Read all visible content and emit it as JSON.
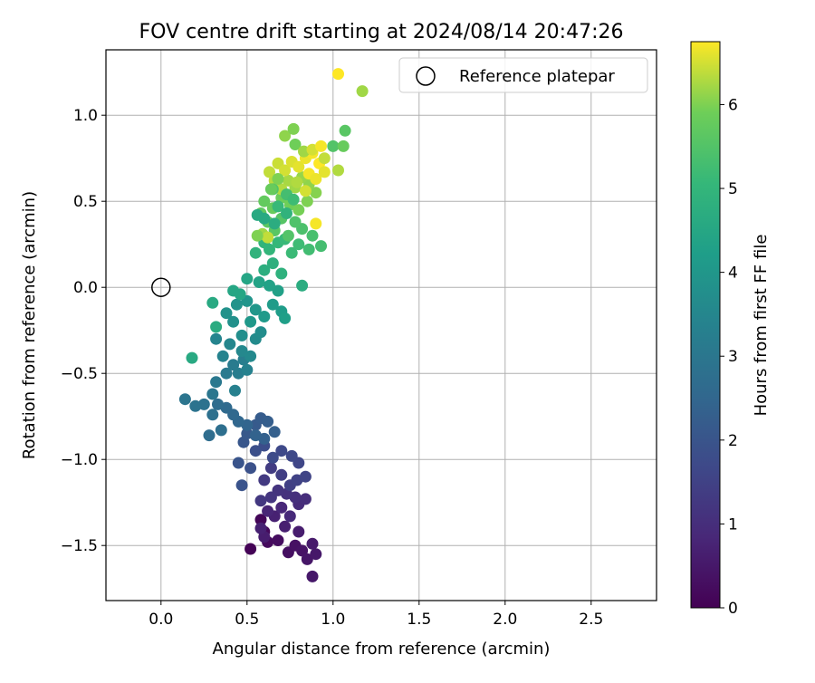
{
  "chart_data": {
    "type": "scatter",
    "title": "FOV centre drift starting at 2024/08/14 20:47:26",
    "xlabel": "Angular distance from reference (arcmin)",
    "ylabel": "Rotation from reference (arcmin)",
    "xlim": [
      -0.32,
      2.88
    ],
    "ylim": [
      -1.82,
      1.38
    ],
    "xticks": [
      0.0,
      0.5,
      1.0,
      1.5,
      2.0,
      2.5
    ],
    "xtick_labels": [
      "0.0",
      "0.5",
      "1.0",
      "1.5",
      "2.0",
      "2.5"
    ],
    "yticks": [
      -1.5,
      -1.0,
      -0.5,
      0.0,
      0.5,
      1.0
    ],
    "ytick_labels": [
      "−1.5",
      "−1.0",
      "−0.5",
      "0.0",
      "0.5",
      "1.0"
    ],
    "grid": true,
    "legend": {
      "placement": "upper right",
      "label": "Reference platepar"
    },
    "reference_point": {
      "x": 0.0,
      "y": 0.0
    },
    "colormap": "viridis",
    "colorbar": {
      "label": "Hours from first FF file",
      "range": [
        0,
        6.75
      ],
      "ticks": [
        0,
        1,
        2,
        3,
        4,
        5,
        6
      ],
      "tick_labels": [
        "0",
        "1",
        "2",
        "3",
        "4",
        "5",
        "6"
      ]
    },
    "series": [
      {
        "points": [
          [
            0.52,
            -1.52,
            0.05
          ],
          [
            0.58,
            -1.35,
            0.1
          ],
          [
            0.6,
            -1.42,
            0.15
          ],
          [
            0.62,
            -1.48,
            0.2
          ],
          [
            0.68,
            -1.47,
            0.25
          ],
          [
            0.74,
            -1.54,
            0.3
          ],
          [
            0.78,
            -1.5,
            0.35
          ],
          [
            0.82,
            -1.53,
            0.4
          ],
          [
            0.85,
            -1.58,
            0.45
          ],
          [
            0.88,
            -1.68,
            0.5
          ],
          [
            0.9,
            -1.55,
            0.5
          ],
          [
            0.88,
            -1.49,
            0.55
          ],
          [
            0.8,
            -1.42,
            0.6
          ],
          [
            0.72,
            -1.39,
            0.65
          ],
          [
            0.66,
            -1.33,
            0.7
          ],
          [
            0.6,
            -1.45,
            0.6
          ],
          [
            0.58,
            -1.4,
            0.7
          ],
          [
            0.62,
            -1.3,
            0.8
          ],
          [
            0.7,
            -1.28,
            0.85
          ],
          [
            0.75,
            -1.33,
            0.9
          ],
          [
            0.8,
            -1.26,
            0.95
          ],
          [
            0.84,
            -1.23,
            1.0
          ],
          [
            0.78,
            -1.22,
            1.05
          ],
          [
            0.73,
            -1.2,
            1.1
          ],
          [
            0.68,
            -1.18,
            1.15
          ],
          [
            0.64,
            -1.22,
            1.2
          ],
          [
            0.58,
            -1.24,
            1.25
          ],
          [
            0.6,
            -1.12,
            1.3
          ],
          [
            0.64,
            -1.05,
            1.35
          ],
          [
            0.7,
            -1.09,
            1.4
          ],
          [
            0.75,
            -1.15,
            1.45
          ],
          [
            0.79,
            -1.12,
            1.5
          ],
          [
            0.84,
            -1.1,
            1.55
          ],
          [
            0.8,
            -1.02,
            1.6
          ],
          [
            0.76,
            -0.98,
            1.65
          ],
          [
            0.7,
            -0.95,
            1.7
          ],
          [
            0.65,
            -0.99,
            1.75
          ],
          [
            0.6,
            -0.92,
            1.8
          ],
          [
            0.55,
            -0.95,
            1.85
          ],
          [
            0.52,
            -1.05,
            1.9
          ],
          [
            0.47,
            -1.15,
            1.95
          ],
          [
            0.45,
            -1.02,
            2.0
          ],
          [
            0.48,
            -0.9,
            2.05
          ],
          [
            0.5,
            -0.85,
            2.1
          ],
          [
            0.55,
            -0.8,
            2.15
          ],
          [
            0.58,
            -0.76,
            2.2
          ],
          [
            0.62,
            -0.78,
            2.25
          ],
          [
            0.66,
            -0.84,
            2.3
          ],
          [
            0.6,
            -0.88,
            2.35
          ],
          [
            0.55,
            -0.86,
            2.4
          ],
          [
            0.5,
            -0.8,
            2.45
          ],
          [
            0.45,
            -0.78,
            2.5
          ],
          [
            0.42,
            -0.74,
            2.55
          ],
          [
            0.38,
            -0.7,
            2.6
          ],
          [
            0.33,
            -0.68,
            2.65
          ],
          [
            0.28,
            -0.86,
            2.7
          ],
          [
            0.35,
            -0.83,
            2.75
          ],
          [
            0.3,
            -0.74,
            2.8
          ],
          [
            0.25,
            -0.68,
            2.85
          ],
          [
            0.2,
            -0.69,
            2.9
          ],
          [
            0.14,
            -0.65,
            2.95
          ],
          [
            0.3,
            -0.62,
            3.0
          ],
          [
            0.32,
            -0.55,
            3.05
          ],
          [
            0.38,
            -0.5,
            3.1
          ],
          [
            0.42,
            -0.45,
            3.15
          ],
          [
            0.45,
            -0.5,
            3.2
          ],
          [
            0.48,
            -0.42,
            3.25
          ],
          [
            0.43,
            -0.6,
            3.3
          ],
          [
            0.5,
            -0.48,
            3.35
          ],
          [
            0.36,
            -0.4,
            3.4
          ],
          [
            0.32,
            -0.3,
            3.45
          ],
          [
            0.4,
            -0.33,
            3.5
          ],
          [
            0.47,
            -0.37,
            3.55
          ],
          [
            0.52,
            -0.4,
            3.6
          ],
          [
            0.55,
            -0.3,
            3.65
          ],
          [
            0.58,
            -0.26,
            3.7
          ],
          [
            0.47,
            -0.28,
            3.75
          ],
          [
            0.42,
            -0.2,
            3.8
          ],
          [
            0.38,
            -0.15,
            3.85
          ],
          [
            0.44,
            -0.1,
            3.9
          ],
          [
            0.5,
            -0.08,
            3.95
          ],
          [
            0.55,
            -0.13,
            4.0
          ],
          [
            0.52,
            -0.2,
            4.05
          ],
          [
            0.6,
            -0.17,
            4.1
          ],
          [
            0.65,
            -0.1,
            4.15
          ],
          [
            0.7,
            -0.14,
            4.2
          ],
          [
            0.72,
            -0.18,
            4.25
          ],
          [
            0.68,
            -0.02,
            4.3
          ],
          [
            0.63,
            0.01,
            4.35
          ],
          [
            0.57,
            0.03,
            4.4
          ],
          [
            0.5,
            0.05,
            4.45
          ],
          [
            0.46,
            -0.04,
            4.5
          ],
          [
            0.42,
            -0.02,
            4.5
          ],
          [
            0.3,
            -0.09,
            4.6
          ],
          [
            0.18,
            -0.41,
            4.6
          ],
          [
            0.32,
            -0.23,
            4.65
          ],
          [
            0.82,
            0.01,
            4.7
          ],
          [
            0.6,
            0.1,
            4.75
          ],
          [
            0.65,
            0.14,
            4.8
          ],
          [
            0.7,
            0.08,
            4.85
          ],
          [
            0.55,
            0.2,
            4.9
          ],
          [
            0.6,
            0.26,
            4.95
          ],
          [
            0.63,
            0.22,
            5.0
          ],
          [
            0.68,
            0.26,
            5.05
          ],
          [
            0.72,
            0.28,
            5.1
          ],
          [
            0.76,
            0.2,
            5.15
          ],
          [
            0.8,
            0.25,
            5.2
          ],
          [
            0.86,
            0.22,
            5.25
          ],
          [
            0.93,
            0.24,
            5.3
          ],
          [
            0.88,
            0.3,
            5.35
          ],
          [
            0.82,
            0.34,
            5.4
          ],
          [
            0.78,
            0.38,
            5.45
          ],
          [
            0.74,
            0.3,
            5.5
          ],
          [
            0.7,
            0.4,
            5.55
          ],
          [
            0.66,
            0.33,
            5.6
          ],
          [
            0.62,
            0.38,
            5.65
          ],
          [
            0.58,
            0.43,
            5.7
          ],
          [
            0.6,
            0.5,
            5.75
          ],
          [
            0.65,
            0.46,
            5.8
          ],
          [
            0.7,
            0.52,
            5.85
          ],
          [
            0.75,
            0.48,
            5.9
          ],
          [
            0.8,
            0.45,
            5.95
          ],
          [
            0.85,
            0.5,
            6.0
          ],
          [
            0.9,
            0.55,
            6.05
          ],
          [
            0.86,
            0.6,
            6.1
          ],
          [
            0.82,
            0.64,
            6.15
          ],
          [
            0.78,
            0.58,
            6.2
          ],
          [
            0.74,
            0.62,
            6.25
          ],
          [
            0.7,
            0.57,
            6.3
          ],
          [
            0.66,
            0.62,
            6.35
          ],
          [
            0.63,
            0.67,
            6.4
          ],
          [
            0.68,
            0.72,
            6.45
          ],
          [
            0.72,
            0.68,
            6.5
          ],
          [
            0.76,
            0.73,
            6.55
          ],
          [
            0.8,
            0.7,
            6.6
          ],
          [
            0.84,
            0.75,
            6.65
          ],
          [
            0.88,
            0.78,
            6.7
          ],
          [
            0.92,
            0.72,
            6.75
          ],
          [
            0.86,
            0.66,
            6.7
          ],
          [
            0.9,
            0.63,
            6.65
          ],
          [
            0.95,
            0.67,
            6.6
          ],
          [
            1.0,
            0.82,
            5.5
          ],
          [
            1.03,
            0.68,
            6.3
          ],
          [
            1.06,
            0.82,
            5.8
          ],
          [
            1.07,
            0.91,
            5.6
          ],
          [
            1.03,
            1.24,
            6.75
          ],
          [
            1.17,
            1.14,
            6.2
          ],
          [
            0.72,
            0.88,
            6.1
          ],
          [
            0.77,
            0.92,
            6.0
          ],
          [
            0.78,
            0.83,
            5.9
          ],
          [
            0.83,
            0.79,
            6.2
          ],
          [
            0.88,
            0.8,
            6.5
          ],
          [
            0.95,
            0.75,
            6.4
          ],
          [
            0.93,
            0.82,
            6.7
          ],
          [
            0.9,
            0.37,
            6.7
          ],
          [
            0.68,
            0.47,
            5.1
          ],
          [
            0.73,
            0.54,
            5.3
          ],
          [
            0.65,
            0.57,
            5.5
          ],
          [
            0.59,
            0.31,
            6.2
          ],
          [
            0.62,
            0.29,
            6.4
          ],
          [
            0.56,
            0.3,
            6.0
          ],
          [
            0.64,
            0.57,
            5.8
          ],
          [
            0.68,
            0.63,
            6.0
          ],
          [
            0.79,
            0.61,
            6.3
          ],
          [
            0.84,
            0.56,
            6.5
          ],
          [
            0.77,
            0.51,
            5.2
          ],
          [
            0.73,
            0.43,
            4.9
          ],
          [
            0.66,
            0.37,
            4.7
          ],
          [
            0.6,
            0.4,
            4.6
          ],
          [
            0.56,
            0.42,
            4.6
          ]
        ]
      }
    ]
  }
}
